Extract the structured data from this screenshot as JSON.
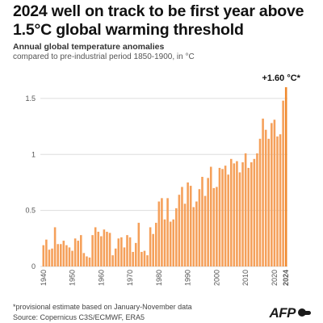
{
  "header": {
    "title": "2024 well on track to be first year above 1.5°C global warming threshold",
    "subtitle": "Annual global temperature anomalies",
    "subtitle2": "compared to pre-industrial period 1850-1900, in °C"
  },
  "footer": {
    "note": "*provisional estimate based on January-November data",
    "source": "Source: Copernicus C3S/ECMWF, ERA5",
    "logo": "AFP"
  },
  "colors": {
    "bar": "#f5a05a",
    "highlight": "#f08a2e",
    "grid": "#dddddd"
  },
  "chart_data": {
    "type": "bar",
    "title": "Annual global temperature anomalies",
    "subtitle": "compared to pre-industrial period 1850-1900, in °C",
    "xlabel": "",
    "ylabel": "",
    "ylim": [
      0,
      1.6
    ],
    "yticks": [
      0,
      0.5,
      1,
      1.5
    ],
    "xticks": [
      1940,
      1950,
      1960,
      1970,
      1980,
      1990,
      2000,
      2010,
      2020
    ],
    "highlight_label": "2024",
    "annotation": "+1.60 °C*",
    "grid": true,
    "categories": [
      1940,
      1941,
      1942,
      1943,
      1944,
      1945,
      1946,
      1947,
      1948,
      1949,
      1950,
      1951,
      1952,
      1953,
      1954,
      1955,
      1956,
      1957,
      1958,
      1959,
      1960,
      1961,
      1962,
      1963,
      1964,
      1965,
      1966,
      1967,
      1968,
      1969,
      1970,
      1971,
      1972,
      1973,
      1974,
      1975,
      1976,
      1977,
      1978,
      1979,
      1980,
      1981,
      1982,
      1983,
      1984,
      1985,
      1986,
      1987,
      1988,
      1989,
      1990,
      1991,
      1992,
      1993,
      1994,
      1995,
      1996,
      1997,
      1998,
      1999,
      2000,
      2001,
      2002,
      2003,
      2004,
      2005,
      2006,
      2007,
      2008,
      2009,
      2010,
      2011,
      2012,
      2013,
      2014,
      2015,
      2016,
      2017,
      2018,
      2019,
      2020,
      2021,
      2022,
      2023,
      2024
    ],
    "values": [
      0.19,
      0.24,
      0.15,
      0.16,
      0.35,
      0.2,
      0.2,
      0.23,
      0.19,
      0.17,
      0.14,
      0.25,
      0.23,
      0.28,
      0.12,
      0.09,
      0.08,
      0.28,
      0.35,
      0.31,
      0.27,
      0.33,
      0.31,
      0.3,
      0.1,
      0.16,
      0.25,
      0.26,
      0.17,
      0.28,
      0.26,
      0.13,
      0.21,
      0.39,
      0.13,
      0.14,
      0.1,
      0.35,
      0.29,
      0.39,
      0.58,
      0.61,
      0.42,
      0.61,
      0.4,
      0.42,
      0.52,
      0.64,
      0.71,
      0.56,
      0.75,
      0.72,
      0.53,
      0.58,
      0.69,
      0.8,
      0.63,
      0.79,
      0.89,
      0.7,
      0.71,
      0.88,
      0.87,
      0.9,
      0.82,
      0.96,
      0.92,
      0.94,
      0.84,
      0.93,
      1.01,
      0.88,
      0.93,
      0.96,
      1.01,
      1.14,
      1.32,
      1.22,
      1.14,
      1.28,
      1.31,
      1.16,
      1.18,
      1.48,
      1.6
    ]
  }
}
